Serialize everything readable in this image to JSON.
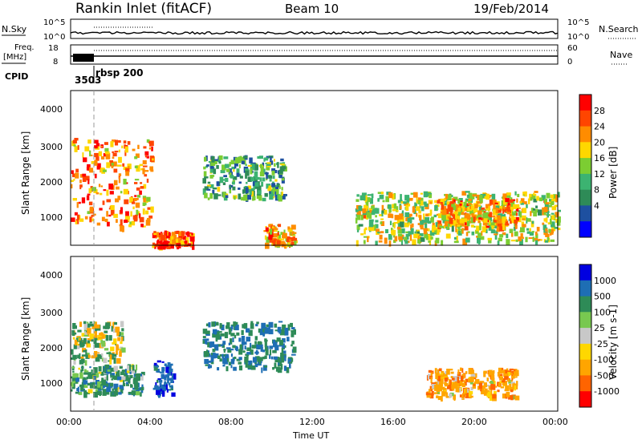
{
  "header": {
    "station": "Rankin Inlet (fitACF)",
    "beam": "Beam 10",
    "date": "19/Feb/2014"
  },
  "noise_panel": {
    "left_label": "N.Sky",
    "right_label": "N.Search",
    "left_ticks": [
      "10^5",
      "10^0"
    ],
    "right_ticks": [
      "10^5",
      "10^0"
    ]
  },
  "freq_panel": {
    "label_line1": "Freq.",
    "label_line2": "[MHz]",
    "right_label": "Nave",
    "left_ticks": [
      "18",
      "8"
    ],
    "right_ticks": [
      "60",
      "0"
    ]
  },
  "cpid": {
    "label": "CPID",
    "value1": "3503",
    "value2": "rbsp 200"
  },
  "power_panel": {
    "ylabel": "Slant Range [km]",
    "yticks": [
      "4000",
      "3000",
      "2000",
      "1000"
    ],
    "colorbar": {
      "label": "Power [dB]",
      "ticks": [
        "28",
        "24",
        "20",
        "16",
        "12",
        "8",
        "4"
      ],
      "colors": [
        "#ff0000",
        "#ff4500",
        "#ff8c00",
        "#ffd700",
        "#7ccd32",
        "#3cb371",
        "#2e8b57",
        "#1e50a0",
        "#0000ff"
      ]
    }
  },
  "velocity_panel": {
    "ylabel": "Slant Range [km]",
    "yticks": [
      "4000",
      "3000",
      "2000",
      "1000"
    ],
    "colorbar": {
      "label": "Velocity [m s-1]",
      "ticks": [
        "1000",
        "500",
        "100",
        "25",
        "-25",
        "-100",
        "-500",
        "-1000"
      ],
      "colors": [
        "#0000e0",
        "#1e6eb4",
        "#2e8b57",
        "#78c850",
        "#c8c8c8",
        "#ffd700",
        "#ffa500",
        "#ff6400",
        "#ff0000"
      ]
    }
  },
  "xaxis": {
    "label": "Time UT",
    "ticks": [
      "00:00",
      "04:00",
      "08:00",
      "12:00",
      "16:00",
      "20:00",
      "00:00"
    ]
  },
  "chart_data": [
    {
      "type": "heatmap",
      "title": "Power",
      "x_range_hours": [
        0,
        24
      ],
      "y_range_km": [
        180,
        4500
      ],
      "echo_regions": [
        {
          "t0": 0.0,
          "t1": 4.0,
          "r0": 700,
          "r1": 3200,
          "power_db": 24
        },
        {
          "t0": 4.0,
          "t1": 6.0,
          "r0": 180,
          "r1": 600,
          "power_db": 26
        },
        {
          "t0": 6.5,
          "t1": 10.5,
          "r0": 1500,
          "r1": 2700,
          "power_db": 12
        },
        {
          "t0": 9.5,
          "t1": 11.0,
          "r0": 200,
          "r1": 800,
          "power_db": 22
        },
        {
          "t0": 14.0,
          "t1": 24.0,
          "r0": 300,
          "r1": 1700,
          "power_db": 18
        },
        {
          "t0": 18.0,
          "t1": 22.0,
          "r0": 700,
          "r1": 1500,
          "power_db": 22
        }
      ]
    },
    {
      "type": "heatmap",
      "title": "Velocity",
      "x_range_hours": [
        0,
        24
      ],
      "y_range_km": [
        180,
        4500
      ],
      "echo_regions": [
        {
          "t0": 0.0,
          "t1": 2.5,
          "r0": 1600,
          "r1": 2700,
          "velocity": 0
        },
        {
          "t0": 0.0,
          "t1": 3.5,
          "r0": 700,
          "r1": 1500,
          "velocity": 300
        },
        {
          "t0": 4.0,
          "t1": 5.0,
          "r0": 700,
          "r1": 1600,
          "velocity": 800
        },
        {
          "t0": 6.5,
          "t1": 11.0,
          "r0": 1400,
          "r1": 2700,
          "velocity": 500
        },
        {
          "t0": 17.5,
          "t1": 22.0,
          "r0": 600,
          "r1": 1400,
          "velocity": -300
        }
      ]
    }
  ]
}
